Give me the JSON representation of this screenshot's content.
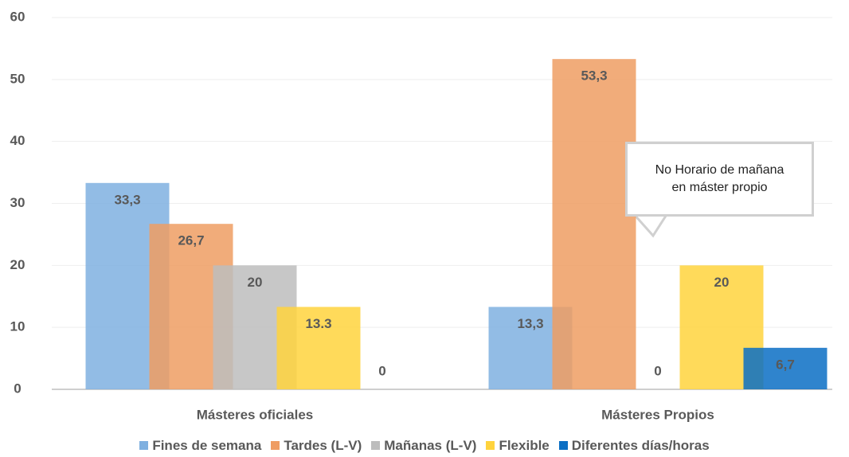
{
  "chart_data": {
    "type": "bar",
    "categories": [
      "Másteres oficiales",
      "Másteres Propios"
    ],
    "series": [
      {
        "name": "Fines de semana",
        "color": "#7fb0e0",
        "values": [
          33.3,
          13.3
        ],
        "value_labels": [
          "33,3",
          "13,3"
        ]
      },
      {
        "name": "Tardes (L-V)",
        "color": "#ef9d63",
        "values": [
          26.7,
          53.3
        ],
        "value_labels": [
          "26,7",
          "53,3"
        ]
      },
      {
        "name": "Mañanas (L-V)",
        "color": "#bdbdbd",
        "values": [
          20,
          0
        ]
      },
      {
        "name": "Flexible",
        "color": "#ffd33d",
        "values": [
          13.3,
          20
        ]
      },
      {
        "name": "Diferentes días/horas",
        "color": "#0b6fc4",
        "values": [
          0,
          6.7
        ],
        "value_labels": [
          "0",
          "6,7"
        ]
      }
    ],
    "annotation": "No Horario de mañana en máster propio",
    "ylim": [
      0,
      60
    ],
    "yticks": [
      0,
      10,
      20,
      30,
      40,
      50,
      60
    ],
    "grid": true
  }
}
